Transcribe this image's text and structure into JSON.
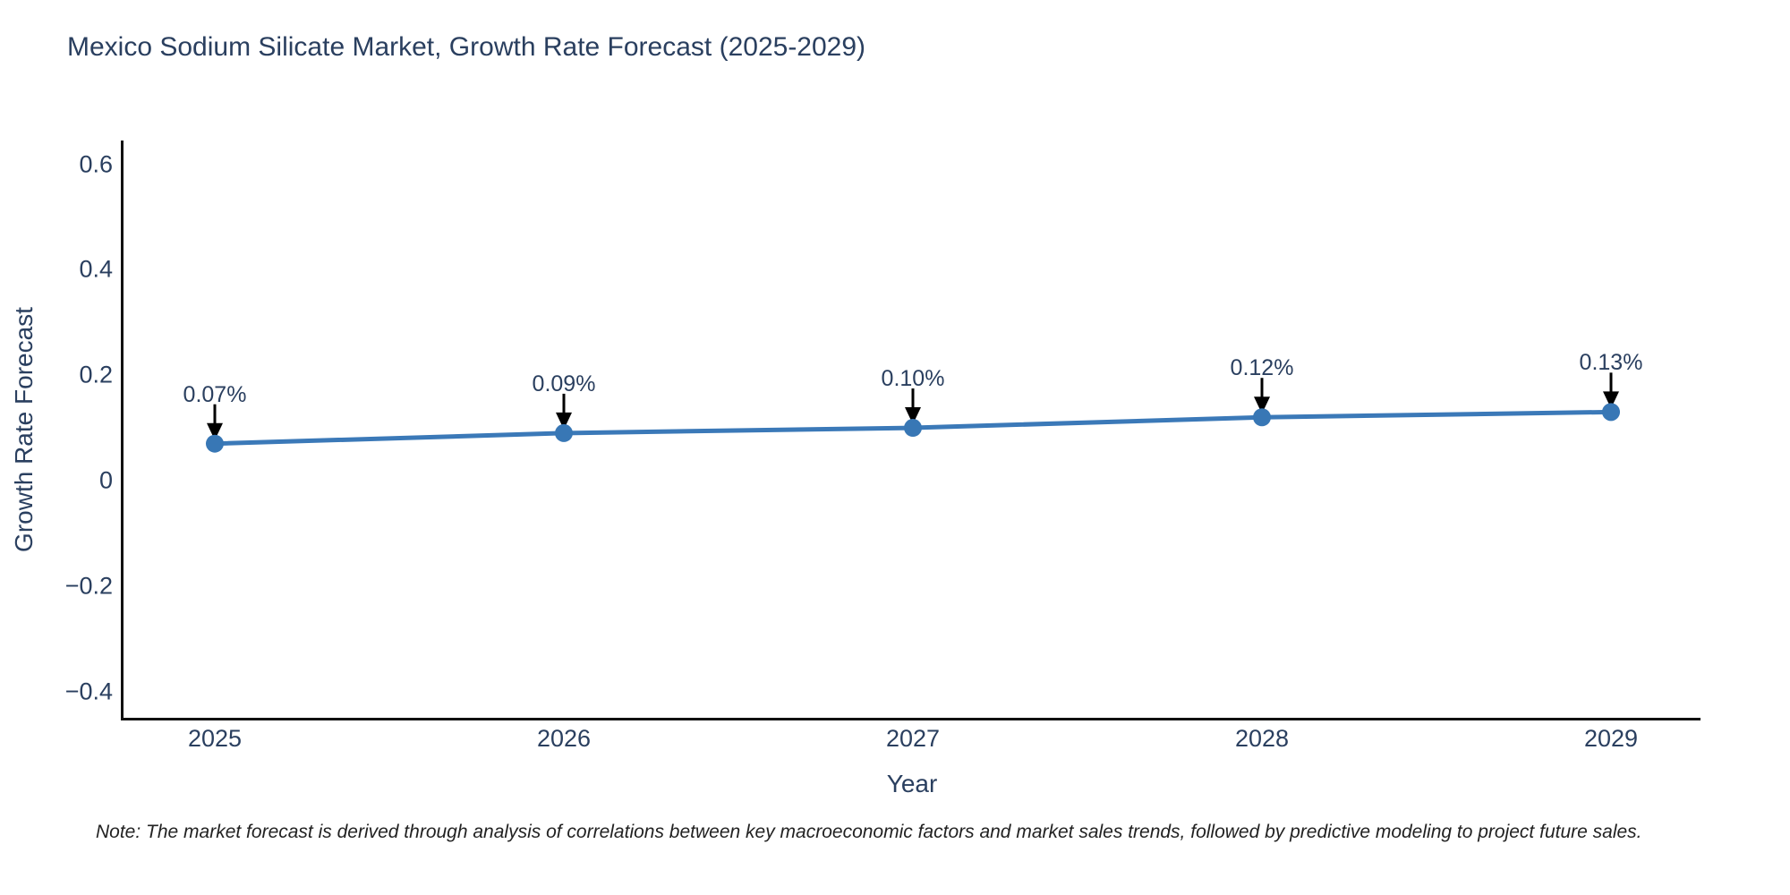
{
  "chart_data": {
    "type": "line",
    "title": "Mexico Sodium Silicate Market, Growth Rate Forecast (2025-2029)",
    "xlabel": "Year",
    "ylabel": "Growth Rate Forecast",
    "categories": [
      "2025",
      "2026",
      "2027",
      "2028",
      "2029"
    ],
    "series": [
      {
        "values": [
          0.07,
          0.09,
          0.1,
          0.12,
          0.13
        ]
      }
    ],
    "point_labels": [
      "0.07%",
      "0.09%",
      "0.10%",
      "0.12%",
      "0.13%"
    ],
    "ylim": [
      -0.45,
      0.645
    ],
    "yticks": [
      {
        "value": 0.6,
        "label": "0.6"
      },
      {
        "value": 0.4,
        "label": "0.4"
      },
      {
        "value": 0.2,
        "label": "0.2"
      },
      {
        "value": 0,
        "label": "0"
      },
      {
        "value": -0.2,
        "label": "−0.2"
      },
      {
        "value": -0.4,
        "label": "−0.4"
      }
    ],
    "grid": false,
    "legend": "none",
    "colors": {
      "line": "#3b79b8",
      "marker": "#3877b5",
      "axis": "#111111",
      "text": "#2a3f5f",
      "arrow": "#000000"
    }
  },
  "note": "Note: The market forecast is derived through analysis of correlations between key macroeconomic factors and market sales trends, followed by predictive modeling to project future sales."
}
